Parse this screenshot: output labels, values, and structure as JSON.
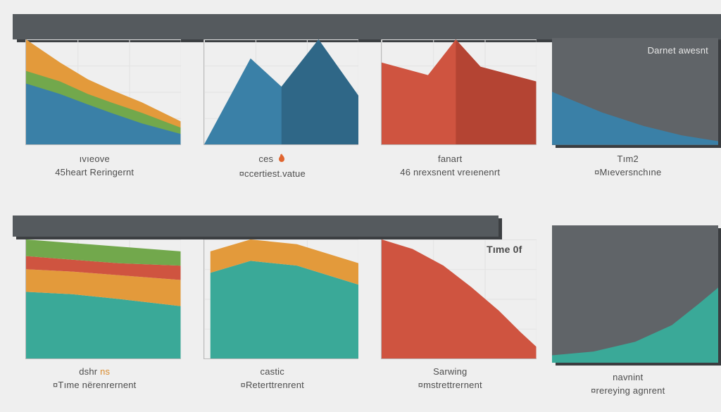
{
  "bg": "#efefef",
  "header_bar_color": "#555a5e",
  "header_bar_shadow": "#3c3f42",
  "grid_color": "#e2e2e2",
  "axis_color": "#bbbbbb",
  "row1": {
    "panel1": {
      "type": "area-stacked",
      "series": [
        {
          "color": "#e39a3b",
          "points": [
            [
              0,
              1.0
            ],
            [
              0.22,
              0.78
            ],
            [
              0.4,
              0.62
            ],
            [
              0.55,
              0.52
            ],
            [
              0.75,
              0.4
            ],
            [
              1.0,
              0.22
            ]
          ]
        },
        {
          "color": "#72a84c",
          "points": [
            [
              0,
              0.7
            ],
            [
              0.22,
              0.6
            ],
            [
              0.4,
              0.48
            ],
            [
              0.55,
              0.4
            ],
            [
              0.75,
              0.3
            ],
            [
              1.0,
              0.16
            ]
          ]
        },
        {
          "color": "#3a80a7",
          "points": [
            [
              0,
              0.58
            ],
            [
              0.22,
              0.48
            ],
            [
              0.4,
              0.38
            ],
            [
              0.55,
              0.3
            ],
            [
              0.75,
              0.2
            ],
            [
              1.0,
              0.1
            ]
          ]
        }
      ],
      "caption_l1": "ıvıeove",
      "caption_l2": "45heart Reringernt"
    },
    "panel2": {
      "type": "shape",
      "fill": "#3a80a7",
      "shadow": "#2f6787",
      "points": [
        [
          0.0,
          0.0
        ],
        [
          0.3,
          0.82
        ],
        [
          0.5,
          0.55
        ],
        [
          0.74,
          1.0
        ],
        [
          1.0,
          0.46
        ],
        [
          1.0,
          0.0
        ]
      ],
      "caption_l1": "ces",
      "icon": "flame",
      "icon_color": "#e0652f",
      "caption_l2": "¤ccertiest.vatue"
    },
    "panel3": {
      "type": "shape",
      "fill": "#cf5440",
      "shadow": "#b44433",
      "points": [
        [
          0.0,
          0.0
        ],
        [
          0.0,
          0.78
        ],
        [
          0.3,
          0.66
        ],
        [
          0.48,
          1.0
        ],
        [
          0.64,
          0.74
        ],
        [
          1.0,
          0.6
        ],
        [
          1.0,
          0.0
        ]
      ],
      "caption_l1": "fanart",
      "caption_l2": "46 nrexsnent vreıenenrt"
    },
    "panel4": {
      "type": "graybox-area",
      "box_color": "#606468",
      "box_shadow": "#3a3d40",
      "area_color": "#3a80a7",
      "area_points": [
        [
          0.0,
          0.0
        ],
        [
          0.0,
          0.9
        ],
        [
          0.3,
          0.55
        ],
        [
          0.55,
          0.32
        ],
        [
          0.78,
          0.16
        ],
        [
          1.0,
          0.06
        ],
        [
          1.0,
          0.0
        ]
      ],
      "label": "Darnet awesnt",
      "label_color": "#e8e8e8",
      "caption_l1": "Tım2",
      "caption_l2": "¤Mıeversnchıne"
    }
  },
  "row2": {
    "panel1": {
      "type": "area-stacked",
      "series": [
        {
          "color": "#72a84c",
          "top": [
            [
              0,
              1.0
            ],
            [
              0.3,
              0.97
            ],
            [
              0.6,
              0.94
            ],
            [
              1.0,
              0.9
            ]
          ],
          "bot": [
            [
              1.0,
              0.78
            ],
            [
              0.6,
              0.8
            ],
            [
              0.3,
              0.83
            ],
            [
              0,
              0.86
            ]
          ]
        },
        {
          "color": "#cf5440",
          "top": [
            [
              0,
              0.86
            ],
            [
              0.3,
              0.83
            ],
            [
              0.6,
              0.8
            ],
            [
              1.0,
              0.78
            ]
          ],
          "bot": [
            [
              1.0,
              0.66
            ],
            [
              0.6,
              0.7
            ],
            [
              0.3,
              0.73
            ],
            [
              0,
              0.75
            ]
          ]
        },
        {
          "color": "#e39a3b",
          "top": [
            [
              0,
              0.75
            ],
            [
              0.3,
              0.73
            ],
            [
              0.6,
              0.7
            ],
            [
              1.0,
              0.66
            ]
          ],
          "bot": [
            [
              1.0,
              0.44
            ],
            [
              0.6,
              0.5
            ],
            [
              0.3,
              0.54
            ],
            [
              0,
              0.56
            ]
          ]
        },
        {
          "color": "#3aa998",
          "top": [
            [
              0,
              0.56
            ],
            [
              0.3,
              0.54
            ],
            [
              0.6,
              0.5
            ],
            [
              1.0,
              0.44
            ]
          ],
          "bot": [
            [
              1.0,
              0.0
            ],
            [
              0,
              0.0
            ]
          ]
        }
      ],
      "caption_l1": "dshr ns",
      "caption_l1_accent_color": "#d98b2e",
      "caption_l2": "¤Tıme nërenrernent"
    },
    "panel2": {
      "type": "area-stacked",
      "series": [
        {
          "color": "#e39a3b",
          "top": [
            [
              0.04,
              0.9
            ],
            [
              0.3,
              1.0
            ],
            [
              0.6,
              0.96
            ],
            [
              1.0,
              0.8
            ]
          ],
          "bot": [
            [
              1.0,
              0.62
            ],
            [
              0.6,
              0.78
            ],
            [
              0.3,
              0.82
            ],
            [
              0.04,
              0.72
            ]
          ]
        },
        {
          "color": "#3aa998",
          "top": [
            [
              0.04,
              0.72
            ],
            [
              0.3,
              0.82
            ],
            [
              0.6,
              0.78
            ],
            [
              1.0,
              0.62
            ]
          ],
          "bot": [
            [
              1.0,
              0.0
            ],
            [
              0.04,
              0.0
            ]
          ]
        }
      ],
      "floor": 0.02,
      "caption_l1": "castic",
      "caption_l2": "¤Reterttrenrent"
    },
    "panel3": {
      "type": "shape-decline",
      "fill": "#cf5440",
      "points": [
        [
          0.0,
          0.0
        ],
        [
          0.0,
          1.0
        ],
        [
          0.2,
          0.92
        ],
        [
          0.4,
          0.78
        ],
        [
          0.58,
          0.6
        ],
        [
          0.76,
          0.4
        ],
        [
          0.9,
          0.22
        ],
        [
          1.0,
          0.1
        ],
        [
          1.0,
          0.0
        ]
      ],
      "label": "Tıme  0f",
      "label_color": "#4a4a4a",
      "caption_l1": "Sarwing",
      "caption_l2": "¤mstrettrernent"
    },
    "panel4": {
      "type": "graybox-area",
      "box_color": "#606468",
      "box_shadow": "#3a3d40",
      "area_color": "#3aa998",
      "area_points": [
        [
          0.0,
          0.0
        ],
        [
          0.0,
          0.1
        ],
        [
          0.25,
          0.15
        ],
        [
          0.5,
          0.28
        ],
        [
          0.72,
          0.5
        ],
        [
          0.88,
          0.78
        ],
        [
          1.0,
          1.0
        ],
        [
          1.0,
          0.0
        ]
      ],
      "caption_l1": "navnint",
      "caption_l2": "¤rereying agnrent"
    }
  }
}
